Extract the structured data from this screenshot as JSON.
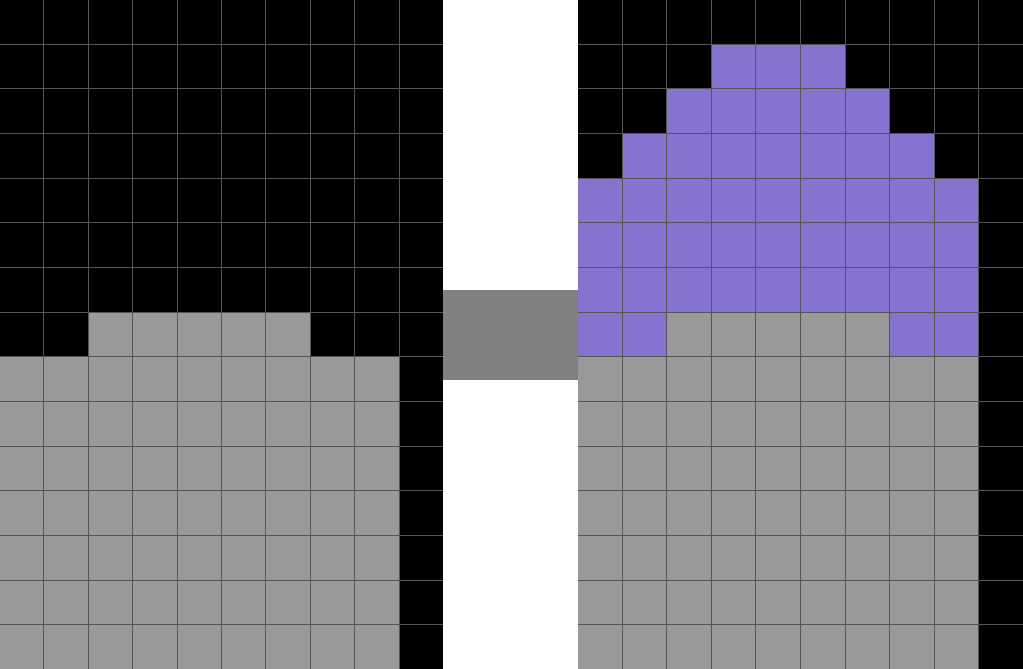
{
  "palette": {
    "0": "#000000",
    "5": "#999999",
    "8": "#8673cf"
  },
  "connector_color": "#808080",
  "input_grid": [
    [
      0,
      0,
      0,
      0,
      0,
      0,
      0,
      0,
      0,
      0
    ],
    [
      0,
      0,
      0,
      0,
      0,
      0,
      0,
      0,
      0,
      0
    ],
    [
      0,
      0,
      0,
      0,
      0,
      0,
      0,
      0,
      0,
      0
    ],
    [
      0,
      0,
      0,
      0,
      0,
      0,
      0,
      0,
      0,
      0
    ],
    [
      0,
      0,
      0,
      0,
      0,
      0,
      0,
      0,
      0,
      0
    ],
    [
      0,
      0,
      0,
      0,
      0,
      0,
      0,
      0,
      0,
      0
    ],
    [
      0,
      0,
      0,
      0,
      0,
      0,
      0,
      0,
      0,
      0
    ],
    [
      0,
      0,
      5,
      5,
      5,
      5,
      5,
      0,
      0,
      0
    ],
    [
      5,
      5,
      5,
      5,
      5,
      5,
      5,
      5,
      5,
      0
    ],
    [
      5,
      5,
      5,
      5,
      5,
      5,
      5,
      5,
      5,
      0
    ],
    [
      5,
      5,
      5,
      5,
      5,
      5,
      5,
      5,
      5,
      0
    ],
    [
      5,
      5,
      5,
      5,
      5,
      5,
      5,
      5,
      5,
      0
    ],
    [
      5,
      5,
      5,
      5,
      5,
      5,
      5,
      5,
      5,
      0
    ],
    [
      5,
      5,
      5,
      5,
      5,
      5,
      5,
      5,
      5,
      0
    ],
    [
      5,
      5,
      5,
      5,
      5,
      5,
      5,
      5,
      5,
      0
    ]
  ],
  "output_grid": [
    [
      0,
      0,
      0,
      0,
      0,
      0,
      0,
      0,
      0,
      0
    ],
    [
      0,
      0,
      0,
      8,
      8,
      8,
      0,
      0,
      0,
      0
    ],
    [
      0,
      0,
      8,
      8,
      8,
      8,
      8,
      0,
      0,
      0
    ],
    [
      0,
      8,
      8,
      8,
      8,
      8,
      8,
      8,
      0,
      0
    ],
    [
      8,
      8,
      8,
      8,
      8,
      8,
      8,
      8,
      8,
      0
    ],
    [
      8,
      8,
      8,
      8,
      8,
      8,
      8,
      8,
      8,
      0
    ],
    [
      8,
      8,
      8,
      8,
      8,
      8,
      8,
      8,
      8,
      0
    ],
    [
      8,
      8,
      5,
      5,
      5,
      5,
      5,
      8,
      8,
      0
    ],
    [
      5,
      5,
      5,
      5,
      5,
      5,
      5,
      5,
      5,
      0
    ],
    [
      5,
      5,
      5,
      5,
      5,
      5,
      5,
      5,
      5,
      0
    ],
    [
      5,
      5,
      5,
      5,
      5,
      5,
      5,
      5,
      5,
      0
    ],
    [
      5,
      5,
      5,
      5,
      5,
      5,
      5,
      5,
      5,
      0
    ],
    [
      5,
      5,
      5,
      5,
      5,
      5,
      5,
      5,
      5,
      0
    ],
    [
      5,
      5,
      5,
      5,
      5,
      5,
      5,
      5,
      5,
      0
    ],
    [
      5,
      5,
      5,
      5,
      5,
      5,
      5,
      5,
      5,
      0
    ]
  ]
}
